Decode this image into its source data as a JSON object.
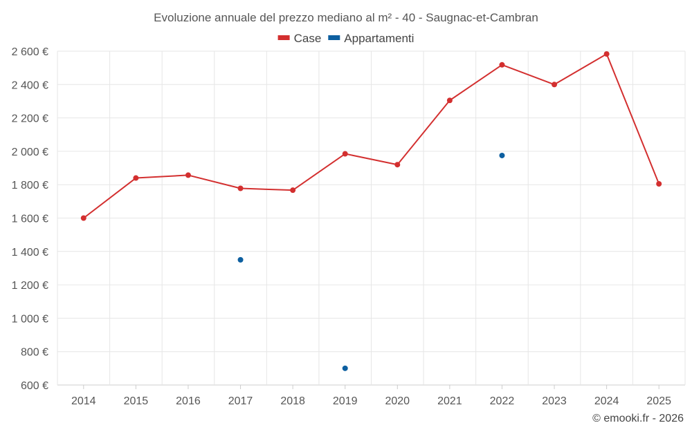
{
  "chart_data": {
    "type": "line",
    "title": "Evoluzione annuale del prezzo mediano al m² - 40 - Saugnac-et-Cambran",
    "categories": [
      "2014",
      "2015",
      "2016",
      "2017",
      "2018",
      "2019",
      "2020",
      "2021",
      "2022",
      "2023",
      "2024",
      "2025"
    ],
    "series": [
      {
        "name": "Case",
        "color": "#d32f2f",
        "values": [
          1600,
          1840,
          1857,
          1778,
          1767,
          1985,
          1920,
          2305,
          2518,
          2400,
          2583,
          1805
        ]
      },
      {
        "name": "Appartamenti",
        "color": "#0d5fa0",
        "values": [
          null,
          null,
          null,
          1350,
          null,
          700,
          null,
          null,
          1975,
          null,
          null,
          null
        ]
      }
    ],
    "ylim": [
      600,
      2600
    ],
    "yticks": [
      600,
      800,
      1000,
      1200,
      1400,
      1600,
      1800,
      2000,
      2200,
      2400,
      2600
    ],
    "ytick_labels": [
      "600 €",
      "800 €",
      "1 000 €",
      "1 200 €",
      "1 400 €",
      "1 600 €",
      "1 800 €",
      "2 000 €",
      "2 200 €",
      "2 400 €",
      "2 600 €"
    ],
    "xlabel": "",
    "ylabel": "",
    "grid": true,
    "legend_position": "top-center"
  },
  "credit": "© emooki.fr - 2026"
}
